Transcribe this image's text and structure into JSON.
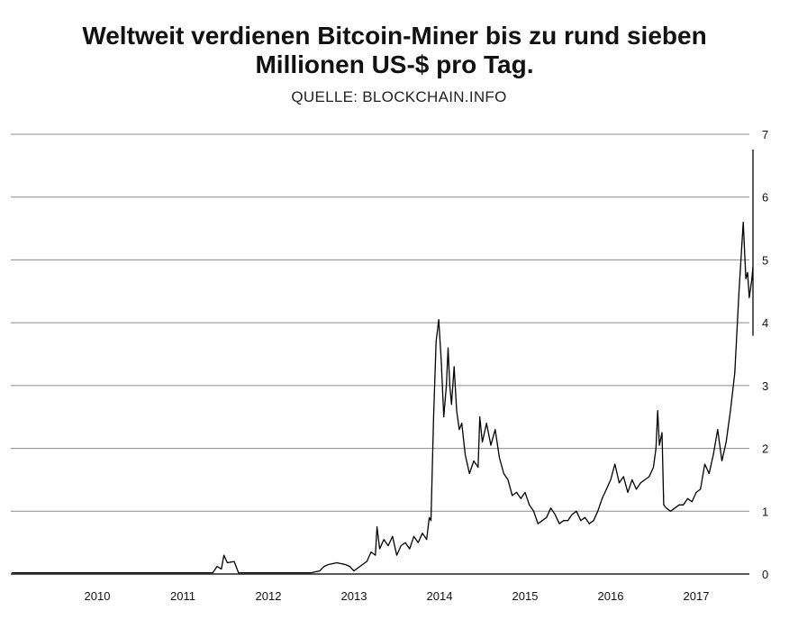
{
  "header": {
    "title_line1": "Weltweit verdienen Bitcoin-Miner bis zu rund sieben",
    "title_line2": "Millionen US-$ pro Tag.",
    "source": "QUELLE: BLOCKCHAIN.INFO"
  },
  "chart_data": {
    "type": "line",
    "title": "Weltweit verdienen Bitcoin-Miner bis zu rund sieben Millionen US-$ pro Tag.",
    "subtitle": "QUELLE: BLOCKCHAIN.INFO",
    "xlabel": "",
    "ylabel": "",
    "ylim": [
      0,
      7
    ],
    "y_ticks": [
      "0",
      "1",
      "2",
      "3",
      "4",
      "5",
      "6",
      "7"
    ],
    "x_ticks": [
      "2010",
      "2011",
      "2012",
      "2013",
      "2014",
      "2015",
      "2016",
      "2017"
    ],
    "grid": "horizontal",
    "y_axis_side": "right",
    "line_color": "#000000",
    "series": [
      {
        "x": [
          2009.0,
          2010.0,
          2011.0,
          2011.35,
          2011.4,
          2011.45,
          2011.48,
          2011.52,
          2011.6,
          2011.65,
          2011.7,
          2012.0,
          2012.5,
          2012.6,
          2012.65,
          2012.7,
          2012.8,
          2012.9,
          2012.95,
          2013.0,
          2013.05,
          2013.1,
          2013.15,
          2013.2,
          2013.25,
          2013.27,
          2013.3,
          2013.35,
          2013.4,
          2013.45,
          2013.5,
          2013.55,
          2013.6,
          2013.65,
          2013.7,
          2013.75,
          2013.8,
          2013.85,
          2013.88,
          2013.9,
          2013.93,
          2013.96,
          2013.99,
          2014.02,
          2014.05,
          2014.08,
          2014.1,
          2014.12,
          2014.14,
          2014.17,
          2014.2,
          2014.23,
          2014.26,
          2014.3,
          2014.35,
          2014.4,
          2014.45,
          2014.47,
          2014.5,
          2014.55,
          2014.6,
          2014.65,
          2014.7,
          2014.75,
          2014.8,
          2014.85,
          2014.9,
          2014.95,
          2015.0,
          2015.05,
          2015.1,
          2015.15,
          2015.2,
          2015.25,
          2015.3,
          2015.35,
          2015.4,
          2015.45,
          2015.5,
          2015.55,
          2015.6,
          2015.65,
          2015.7,
          2015.75,
          2015.8,
          2015.85,
          2015.9,
          2015.95,
          2016.0,
          2016.05,
          2016.1,
          2016.15,
          2016.2,
          2016.25,
          2016.3,
          2016.35,
          2016.4,
          2016.45,
          2016.5,
          2016.53,
          2016.55,
          2016.57,
          2016.6,
          2016.62,
          2016.65,
          2016.7,
          2016.75,
          2016.8,
          2016.85,
          2016.9,
          2016.95,
          2017.0,
          2017.05,
          2017.1,
          2017.15,
          2017.2,
          2017.25,
          2017.3,
          2017.35,
          2017.4,
          2017.45,
          2017.5,
          2017.55,
          2017.58,
          2017.6,
          2017.62,
          2017.65,
          2017.68,
          2017.7,
          2017.72,
          2017.74,
          2017.76,
          2017.78,
          2017.8,
          2017.82,
          2017.84,
          2017.85
        ],
        "values": [
          0.02,
          0.02,
          0.02,
          0.02,
          0.12,
          0.08,
          0.3,
          0.18,
          0.2,
          0.02,
          0.02,
          0.02,
          0.02,
          0.05,
          0.12,
          0.15,
          0.18,
          0.15,
          0.12,
          0.05,
          0.1,
          0.15,
          0.2,
          0.35,
          0.3,
          0.75,
          0.4,
          0.55,
          0.45,
          0.6,
          0.3,
          0.45,
          0.5,
          0.4,
          0.6,
          0.5,
          0.65,
          0.55,
          0.9,
          0.85,
          2.5,
          3.7,
          4.05,
          3.4,
          2.5,
          3.0,
          3.6,
          3.0,
          2.7,
          3.3,
          2.6,
          2.3,
          2.4,
          1.9,
          1.6,
          1.8,
          1.7,
          2.5,
          2.1,
          2.4,
          2.05,
          2.3,
          1.85,
          1.6,
          1.5,
          1.25,
          1.3,
          1.2,
          1.3,
          1.1,
          1.0,
          0.8,
          0.85,
          0.9,
          1.05,
          0.95,
          0.8,
          0.85,
          0.85,
          0.95,
          1.0,
          0.85,
          0.9,
          0.8,
          0.85,
          1.0,
          1.2,
          1.35,
          1.5,
          1.75,
          1.45,
          1.55,
          1.3,
          1.5,
          1.35,
          1.45,
          1.5,
          1.55,
          1.7,
          2.0,
          2.6,
          2.05,
          2.25,
          1.1,
          1.05,
          1.0,
          1.05,
          1.1,
          1.1,
          1.2,
          1.15,
          1.3,
          1.35,
          1.75,
          1.6,
          1.9,
          2.3,
          1.8,
          2.1,
          2.6,
          3.2,
          4.5,
          5.6,
          4.7,
          4.8,
          4.4,
          4.7,
          4.9,
          3.8,
          4.8,
          5.05,
          4.7,
          5.7,
          6.4,
          6.75,
          4.7,
          5.5
        ]
      }
    ]
  }
}
